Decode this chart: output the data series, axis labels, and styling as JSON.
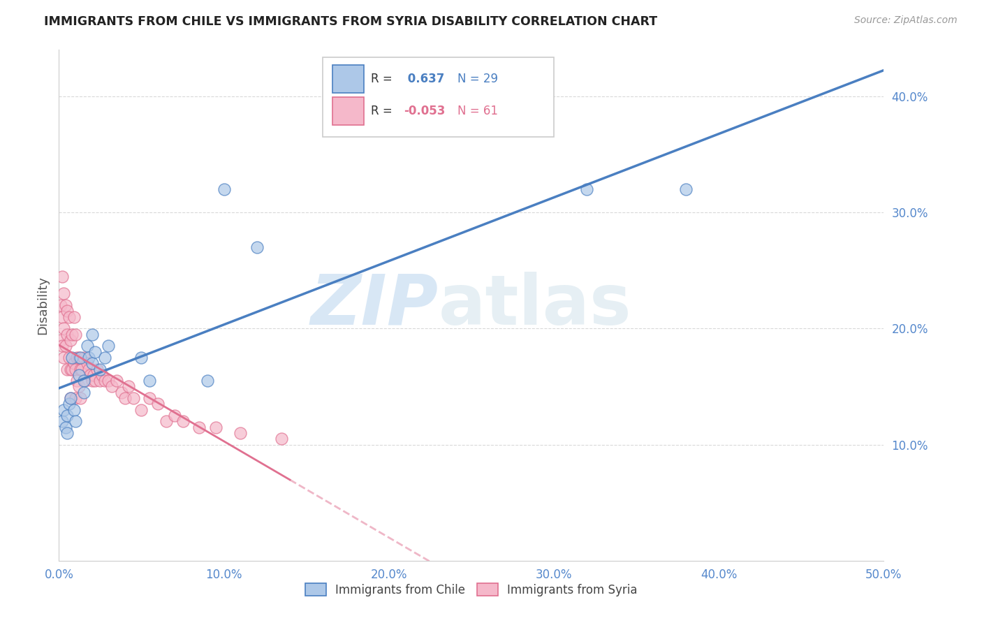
{
  "title": "IMMIGRANTS FROM CHILE VS IMMIGRANTS FROM SYRIA DISABILITY CORRELATION CHART",
  "source": "Source: ZipAtlas.com",
  "ylabel_label": "Disability",
  "watermark_zip": "ZIP",
  "watermark_atlas": "atlas",
  "xlim": [
    0.0,
    0.5
  ],
  "ylim": [
    0.0,
    0.44
  ],
  "xtick_labels": [
    "0.0%",
    "",
    "10.0%",
    "",
    "20.0%",
    "",
    "30.0%",
    "",
    "40.0%",
    "",
    "50.0%"
  ],
  "xtick_values": [
    0.0,
    0.05,
    0.1,
    0.15,
    0.2,
    0.25,
    0.3,
    0.35,
    0.4,
    0.45,
    0.5
  ],
  "xtick_major_labels": [
    "0.0%",
    "10.0%",
    "20.0%",
    "30.0%",
    "40.0%",
    "50.0%"
  ],
  "xtick_major_values": [
    0.0,
    0.1,
    0.2,
    0.3,
    0.4,
    0.5
  ],
  "ytick_labels": [
    "10.0%",
    "20.0%",
    "30.0%",
    "40.0%"
  ],
  "ytick_values": [
    0.1,
    0.2,
    0.3,
    0.4
  ],
  "chile_R": 0.637,
  "chile_N": 29,
  "syria_R": -0.053,
  "syria_N": 61,
  "chile_color": "#adc8e8",
  "syria_color": "#f5b8ca",
  "chile_line_color": "#4a7fc1",
  "syria_line_color": "#e07090",
  "chile_scatter_x": [
    0.002,
    0.003,
    0.004,
    0.005,
    0.005,
    0.006,
    0.007,
    0.008,
    0.009,
    0.01,
    0.012,
    0.013,
    0.015,
    0.015,
    0.017,
    0.018,
    0.02,
    0.02,
    0.022,
    0.025,
    0.028,
    0.03,
    0.05,
    0.055,
    0.09,
    0.1,
    0.12,
    0.32,
    0.38
  ],
  "chile_scatter_y": [
    0.12,
    0.13,
    0.115,
    0.125,
    0.11,
    0.135,
    0.14,
    0.175,
    0.13,
    0.12,
    0.16,
    0.175,
    0.155,
    0.145,
    0.185,
    0.175,
    0.17,
    0.195,
    0.18,
    0.165,
    0.175,
    0.185,
    0.175,
    0.155,
    0.155,
    0.32,
    0.27,
    0.32,
    0.32
  ],
  "syria_scatter_x": [
    0.001,
    0.001,
    0.002,
    0.002,
    0.002,
    0.003,
    0.003,
    0.003,
    0.004,
    0.004,
    0.005,
    0.005,
    0.005,
    0.006,
    0.006,
    0.007,
    0.007,
    0.007,
    0.008,
    0.008,
    0.009,
    0.009,
    0.01,
    0.01,
    0.01,
    0.011,
    0.011,
    0.012,
    0.012,
    0.013,
    0.013,
    0.014,
    0.015,
    0.016,
    0.017,
    0.018,
    0.019,
    0.02,
    0.021,
    0.022,
    0.023,
    0.025,
    0.026,
    0.028,
    0.03,
    0.032,
    0.035,
    0.038,
    0.04,
    0.042,
    0.045,
    0.05,
    0.055,
    0.06,
    0.065,
    0.07,
    0.075,
    0.085,
    0.095,
    0.11,
    0.135
  ],
  "syria_scatter_y": [
    0.22,
    0.19,
    0.245,
    0.21,
    0.185,
    0.23,
    0.2,
    0.175,
    0.22,
    0.185,
    0.215,
    0.195,
    0.165,
    0.21,
    0.175,
    0.19,
    0.165,
    0.14,
    0.195,
    0.165,
    0.21,
    0.17,
    0.195,
    0.165,
    0.14,
    0.175,
    0.155,
    0.175,
    0.15,
    0.165,
    0.14,
    0.165,
    0.175,
    0.155,
    0.17,
    0.165,
    0.16,
    0.155,
    0.16,
    0.155,
    0.165,
    0.155,
    0.16,
    0.155,
    0.155,
    0.15,
    0.155,
    0.145,
    0.14,
    0.15,
    0.14,
    0.13,
    0.14,
    0.135,
    0.12,
    0.125,
    0.12,
    0.115,
    0.115,
    0.11,
    0.105
  ],
  "bg_color": "#ffffff",
  "grid_color": "#d0d0d0",
  "title_color": "#222222",
  "axis_label_color": "#555555",
  "tick_color": "#5588cc"
}
